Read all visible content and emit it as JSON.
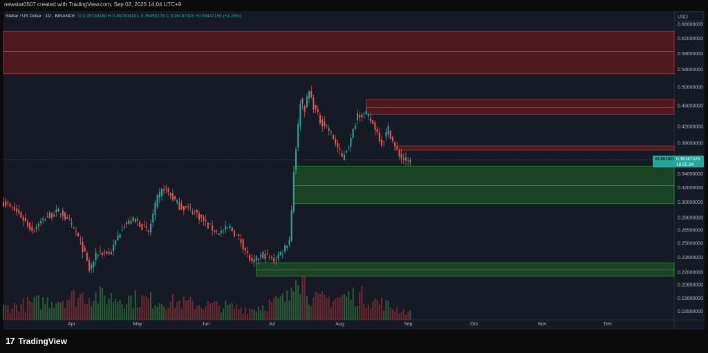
{
  "header": {
    "caption": "newstar0507 created with TradingView.com, Sep 02, 2025 14:04 UTC+9"
  },
  "legend": {
    "symbol": "Stellar / US Dollar · 1D · BINANCE",
    "ohlc": "O 0.35738160  H 0.36200419  L 0.35450178  C 0.36187325  +0.00447150 (+1.25%)"
  },
  "axis": {
    "currency": "USD",
    "price_tag_symbol": "XLMUSD",
    "price_tag_value": "0.36187325",
    "price_tag_countdown": "18:55:34"
  },
  "footer": {
    "brand": "TradingView",
    "logo_mark": "17"
  },
  "colors": {
    "up": "#26a69a",
    "down": "#ef5350",
    "supply_zone": "#5a1a1f",
    "demand_zone": "#1b4a24",
    "background": "#161a25"
  },
  "chart_data": {
    "type": "candlestick",
    "title": "Stellar / US Dollar · 1D · BINANCE",
    "scale": "log",
    "ylim": [
      0.178,
      0.7
    ],
    "y_ticks": [
      {
        "v": 0.66,
        "label": "0.66000000"
      },
      {
        "v": 0.62,
        "label": "0.62000000"
      },
      {
        "v": 0.58,
        "label": "0.58000000"
      },
      {
        "v": 0.54,
        "label": "0.54000000"
      },
      {
        "v": 0.5,
        "label": "0.50000000"
      },
      {
        "v": 0.46,
        "label": "0.46000000"
      },
      {
        "v": 0.42,
        "label": "0.42000000"
      },
      {
        "v": 0.39,
        "label": "0.39000000"
      },
      {
        "v": 0.36,
        "label": "0.36000000"
      },
      {
        "v": 0.34,
        "label": "0.34000000"
      },
      {
        "v": 0.32,
        "label": "0.32000000"
      },
      {
        "v": 0.3,
        "label": "0.30000000"
      },
      {
        "v": 0.28,
        "label": "0.28000000"
      },
      {
        "v": 0.265,
        "label": "0.26500000"
      },
      {
        "v": 0.25,
        "label": "0.25000000"
      },
      {
        "v": 0.235,
        "label": "0.23500000"
      },
      {
        "v": 0.22,
        "label": "0.22000000"
      },
      {
        "v": 0.208,
        "label": "0.20800000"
      },
      {
        "v": 0.196,
        "label": "0.19600000"
      },
      {
        "v": 0.185,
        "label": "0.18500000"
      }
    ],
    "x_ticks": [
      {
        "date": "2025-04-01",
        "label": "Apr"
      },
      {
        "date": "2025-05-01",
        "label": "May"
      },
      {
        "date": "2025-06-01",
        "label": "Jun"
      },
      {
        "date": "2025-07-01",
        "label": "Jul"
      },
      {
        "date": "2025-08-01",
        "label": "Aug"
      },
      {
        "date": "2025-09-01",
        "label": "Sep"
      },
      {
        "date": "2025-10-01",
        "label": "Oct"
      },
      {
        "date": "2025-11-01",
        "label": "Nov"
      },
      {
        "date": "2025-12-01",
        "label": "Dec"
      }
    ],
    "x_range": [
      "2025-03-01",
      "2025-12-31"
    ],
    "last_price": 0.36187325,
    "price_anchors": [
      {
        "date": "2025-03-01",
        "close": 0.3
      },
      {
        "date": "2025-03-08",
        "close": 0.285
      },
      {
        "date": "2025-03-14",
        "close": 0.265
      },
      {
        "date": "2025-03-21",
        "close": 0.282
      },
      {
        "date": "2025-03-27",
        "close": 0.288
      },
      {
        "date": "2025-04-03",
        "close": 0.262
      },
      {
        "date": "2025-04-07",
        "close": 0.238
      },
      {
        "date": "2025-04-09",
        "close": 0.222
      },
      {
        "date": "2025-04-13",
        "close": 0.24
      },
      {
        "date": "2025-04-19",
        "close": 0.24
      },
      {
        "date": "2025-04-24",
        "close": 0.27
      },
      {
        "date": "2025-04-30",
        "close": 0.278
      },
      {
        "date": "2025-05-06",
        "close": 0.262
      },
      {
        "date": "2025-05-10",
        "close": 0.305
      },
      {
        "date": "2025-05-13",
        "close": 0.32
      },
      {
        "date": "2025-05-20",
        "close": 0.295
      },
      {
        "date": "2025-05-27",
        "close": 0.288
      },
      {
        "date": "2025-06-02",
        "close": 0.27
      },
      {
        "date": "2025-06-07",
        "close": 0.262
      },
      {
        "date": "2025-06-12",
        "close": 0.268
      },
      {
        "date": "2025-06-17",
        "close": 0.252
      },
      {
        "date": "2025-06-22",
        "close": 0.228
      },
      {
        "date": "2025-06-27",
        "close": 0.238
      },
      {
        "date": "2025-07-02",
        "close": 0.232
      },
      {
        "date": "2025-07-06",
        "close": 0.242
      },
      {
        "date": "2025-07-09",
        "close": 0.255
      },
      {
        "date": "2025-07-10",
        "close": 0.29
      },
      {
        "date": "2025-07-11",
        "close": 0.345
      },
      {
        "date": "2025-07-13",
        "close": 0.42
      },
      {
        "date": "2025-07-14",
        "close": 0.47
      },
      {
        "date": "2025-07-16",
        "close": 0.455
      },
      {
        "date": "2025-07-18",
        "close": 0.49
      },
      {
        "date": "2025-07-20",
        "close": 0.46
      },
      {
        "date": "2025-07-23",
        "close": 0.43
      },
      {
        "date": "2025-07-26",
        "close": 0.42
      },
      {
        "date": "2025-07-30",
        "close": 0.39
      },
      {
        "date": "2025-08-02",
        "close": 0.365
      },
      {
        "date": "2025-08-06",
        "close": 0.395
      },
      {
        "date": "2025-08-09",
        "close": 0.445
      },
      {
        "date": "2025-08-13",
        "close": 0.442
      },
      {
        "date": "2025-08-17",
        "close": 0.418
      },
      {
        "date": "2025-08-20",
        "close": 0.39
      },
      {
        "date": "2025-08-23",
        "close": 0.415
      },
      {
        "date": "2025-08-26",
        "close": 0.382
      },
      {
        "date": "2025-08-29",
        "close": 0.365
      },
      {
        "date": "2025-09-01",
        "close": 0.358
      },
      {
        "date": "2025-09-02",
        "close": 0.362
      }
    ],
    "volume_anchors": [
      {
        "date": "2025-03-01",
        "v": 0.45
      },
      {
        "date": "2025-04-07",
        "v": 0.9
      },
      {
        "date": "2025-05-10",
        "v": 0.7
      },
      {
        "date": "2025-06-22",
        "v": 0.4
      },
      {
        "date": "2025-07-09",
        "v": 0.8
      },
      {
        "date": "2025-07-12",
        "v": 2.4
      },
      {
        "date": "2025-07-14",
        "v": 1.7
      },
      {
        "date": "2025-07-20",
        "v": 0.7
      },
      {
        "date": "2025-08-09",
        "v": 0.9
      },
      {
        "date": "2025-09-02",
        "v": 0.25
      }
    ],
    "zones": [
      {
        "kind": "supply",
        "from": "2025-03-01",
        "to": "2025-12-31",
        "top": 0.64,
        "bottom": 0.53,
        "mid": 0.585
      },
      {
        "kind": "supply",
        "from": "2025-08-13",
        "to": "2025-12-31",
        "top": 0.473,
        "bottom": 0.443,
        "mid": 0.457
      },
      {
        "kind": "supply",
        "from": "2025-08-26",
        "to": "2025-12-31",
        "top": 0.385,
        "bottom": 0.378,
        "mid": null
      },
      {
        "kind": "demand",
        "from": "2025-07-11",
        "to": "2025-12-31",
        "top": 0.352,
        "bottom": 0.298,
        "mid": 0.323
      },
      {
        "kind": "demand",
        "from": "2025-06-24",
        "to": "2025-12-31",
        "top": 0.229,
        "bottom": 0.216,
        "mid": 0.222
      }
    ]
  }
}
